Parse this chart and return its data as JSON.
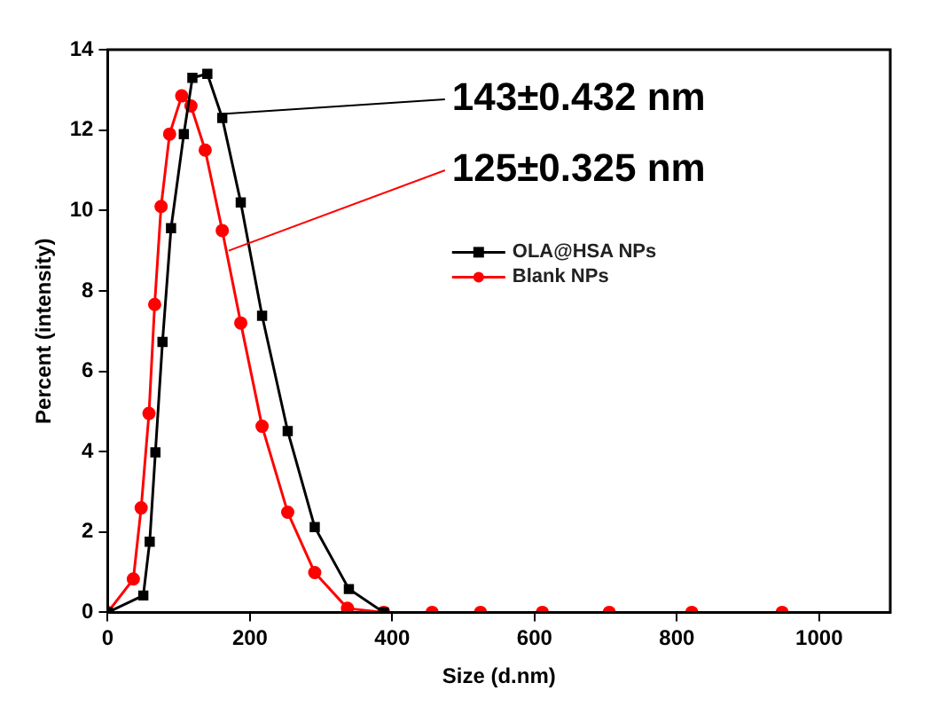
{
  "chart_data": {
    "type": "line",
    "xlabel": "Size (d.nm)",
    "ylabel": "Percent (intensity)",
    "xlim": [
      0,
      1100
    ],
    "xticks": [
      0,
      200,
      400,
      600,
      800,
      1000
    ],
    "ylim": [
      0,
      14
    ],
    "yticks": [
      0,
      2,
      4,
      6,
      8,
      10,
      12,
      14
    ],
    "grid": false,
    "legend": "top right",
    "marker": "circle",
    "line_style": "solid",
    "annotations": [
      {
        "text": "143±0.432 nm",
        "x": 158,
        "y": 12.4
      },
      {
        "text": "125±0.325 nm",
        "x": 170,
        "y": 9.0
      }
    ],
    "series": [
      {
        "name": "OLA@HSA NPs",
        "color": "#000000",
        "marker": "square",
        "x": [
          0,
          50,
          59,
          67,
          77,
          89,
          107,
          119,
          140,
          161,
          187,
          217,
          253,
          291,
          339,
          388
        ],
        "values": [
          0,
          0.42,
          1.76,
          3.98,
          6.73,
          9.56,
          11.9,
          13.3,
          13.4,
          12.3,
          10.2,
          7.38,
          4.51,
          2.12,
          0.58,
          0
        ]
      },
      {
        "name": "Blank NPs",
        "color": "#ff0000",
        "x": [
          0,
          36,
          47,
          58,
          66,
          75,
          87,
          104,
          117,
          137,
          161,
          187,
          217,
          253,
          291,
          337,
          388,
          456,
          524,
          611,
          705,
          821,
          948
        ],
        "values": [
          0,
          0.83,
          2.6,
          4.95,
          7.66,
          10.1,
          11.9,
          12.85,
          12.6,
          11.5,
          9.5,
          7.2,
          4.63,
          2.49,
          0.99,
          0.1,
          0,
          0,
          0,
          0,
          0,
          0,
          0
        ]
      }
    ]
  }
}
